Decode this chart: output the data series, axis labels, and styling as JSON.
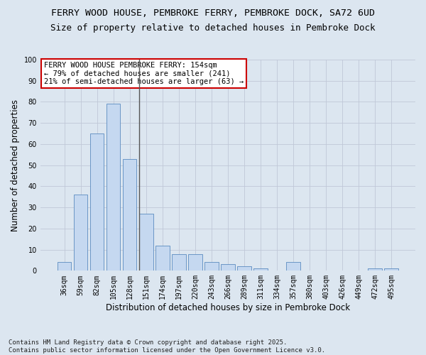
{
  "title": "FERRY WOOD HOUSE, PEMBROKE FERRY, PEMBROKE DOCK, SA72 6UD",
  "subtitle": "Size of property relative to detached houses in Pembroke Dock",
  "xlabel": "Distribution of detached houses by size in Pembroke Dock",
  "ylabel": "Number of detached properties",
  "categories": [
    "36sqm",
    "59sqm",
    "82sqm",
    "105sqm",
    "128sqm",
    "151sqm",
    "174sqm",
    "197sqm",
    "220sqm",
    "243sqm",
    "266sqm",
    "289sqm",
    "311sqm",
    "334sqm",
    "357sqm",
    "380sqm",
    "403sqm",
    "426sqm",
    "449sqm",
    "472sqm",
    "495sqm"
  ],
  "values": [
    4,
    36,
    65,
    79,
    53,
    27,
    12,
    8,
    8,
    4,
    3,
    2,
    1,
    0,
    4,
    0,
    0,
    0,
    0,
    1,
    1
  ],
  "bar_color": "#c5d8f0",
  "bar_edge_color": "#5a8bbf",
  "vline_index": 5,
  "vline_color": "#555555",
  "annotation_text": "FERRY WOOD HOUSE PEMBROKE FERRY: 154sqm\n← 79% of detached houses are smaller (241)\n21% of semi-detached houses are larger (63) →",
  "annotation_box_color": "#ffffff",
  "annotation_box_edge_color": "#cc0000",
  "ylim": [
    0,
    100
  ],
  "yticks": [
    0,
    10,
    20,
    30,
    40,
    50,
    60,
    70,
    80,
    90,
    100
  ],
  "grid_color": "#c0c8d8",
  "bg_color": "#dce6f0",
  "footer": "Contains HM Land Registry data © Crown copyright and database right 2025.\nContains public sector information licensed under the Open Government Licence v3.0.",
  "title_fontsize": 9.5,
  "subtitle_fontsize": 9,
  "axis_label_fontsize": 8.5,
  "tick_fontsize": 7,
  "annotation_fontsize": 7.5,
  "footer_fontsize": 6.5
}
